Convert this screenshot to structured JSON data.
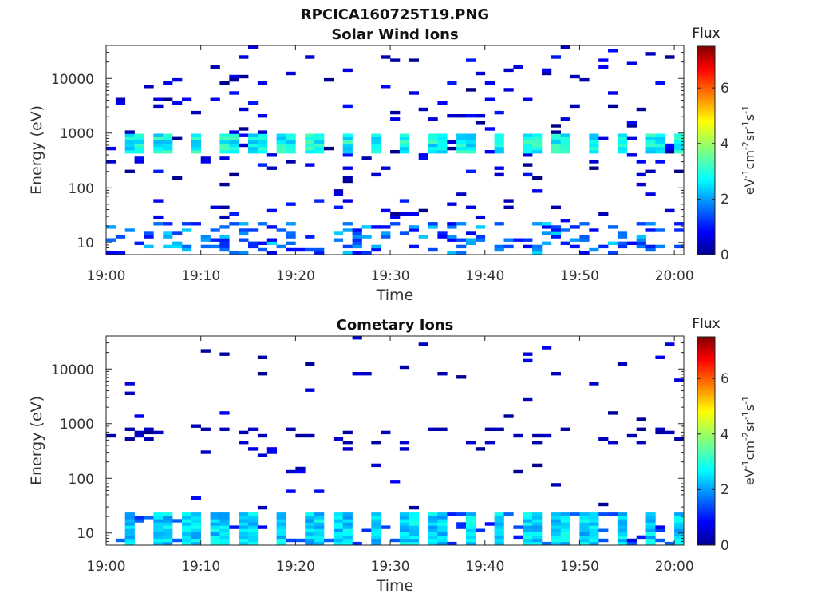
{
  "figure": {
    "title": "RPCICA160725T19.PNG"
  },
  "chart_data": [
    {
      "type": "heatmap",
      "title": "Solar Wind Ions",
      "xlabel": "Time",
      "ylabel": "Energy (eV)",
      "x_ticks": [
        "19:00",
        "19:10",
        "19:20",
        "19:30",
        "19:40",
        "19:50",
        "20:00"
      ],
      "xlim_minutes": [
        0,
        61
      ],
      "y_scale": "log",
      "y_ticks": [
        "10",
        "100",
        "1000",
        "10000"
      ],
      "ylim": [
        6,
        40000
      ],
      "colorbar": {
        "label": "Flux",
        "unit": "eV-1cm-2sr-1s-1",
        "ticks": [
          "0",
          "2",
          "4",
          "6"
        ],
        "range": [
          0,
          7.5
        ],
        "colormap": "jet"
      },
      "patterns": {
        "sw_peak": {
          "x_minutes": [
            2.5,
            5.5,
            9,
            12.5,
            15.5,
            18.5,
            21.5,
            25,
            28,
            31,
            34.5,
            37.5,
            41,
            44.5,
            47.5,
            51,
            54,
            57.5,
            60
          ],
          "energy_eV_range": [
            450,
            950
          ],
          "flux": [
            2.3,
            3.4
          ]
        },
        "low_energy_band": {
          "energy_eV_range": [
            6,
            25
          ],
          "flux": [
            0.8,
            2.6
          ]
        },
        "sparse_high_energy": {
          "energy_eV_range": [
            25,
            40000
          ],
          "flux": [
            0,
            1.2
          ]
        }
      }
    },
    {
      "type": "heatmap",
      "title": "Cometary Ions",
      "xlabel": "Time",
      "ylabel": "Energy (eV)",
      "x_ticks": [
        "19:00",
        "19:10",
        "19:20",
        "19:30",
        "19:40",
        "19:50",
        "20:00"
      ],
      "xlim_minutes": [
        0,
        61
      ],
      "y_scale": "log",
      "y_ticks": [
        "10",
        "100",
        "1000",
        "10000"
      ],
      "ylim": [
        6,
        40000
      ],
      "colorbar": {
        "label": "Flux",
        "unit": "eV-1cm-2sr-1s-1",
        "ticks": [
          "0",
          "2",
          "4",
          "6"
        ],
        "range": [
          0,
          7.5
        ],
        "colormap": "jet"
      },
      "patterns": {
        "low_energy_bursts": {
          "x_minutes": [
            2,
            5.5,
            8.5,
            11.5,
            14.5,
            18,
            21.5,
            24.5,
            28,
            31.5,
            34.5,
            38,
            41,
            44.5,
            47.5,
            50.5,
            54,
            57,
            60
          ],
          "energy_eV_range": [
            6,
            25
          ],
          "flux": [
            2.0,
            3.0
          ]
        },
        "mid_energy_spots": {
          "energy_eV_range": [
            400,
            800
          ],
          "flux": [
            0.2,
            0.6
          ]
        },
        "sparse_high_energy": {
          "energy_eV_range": [
            25,
            40000
          ],
          "flux": [
            0,
            1.0
          ]
        }
      }
    }
  ]
}
